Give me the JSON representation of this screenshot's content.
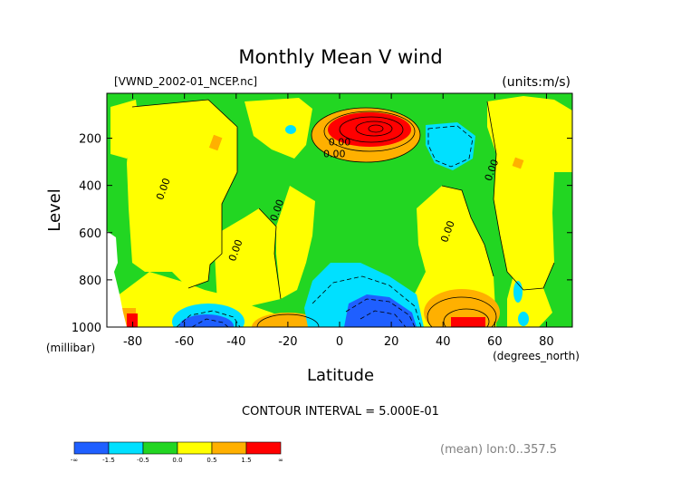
{
  "chart_data": {
    "type": "heatmap",
    "title": "Monthly Mean V wind",
    "file_label": "[VWND_2002-01_NCEP.nc]",
    "units_label": "(units:m/s)",
    "xlabel": "Latitude",
    "x_units": "(degrees_north)",
    "ylabel": "Level",
    "y_units": "(millibar)",
    "xlim": [
      -90,
      90
    ],
    "ylim": [
      1000,
      10
    ],
    "x_ticks": [
      -80,
      -60,
      -40,
      -20,
      0,
      20,
      40,
      60,
      80
    ],
    "y_ticks": [
      200,
      400,
      600,
      800,
      1000
    ],
    "contour_interval_text": "CONTOUR INTERVAL = 5.000E-01",
    "mean_text": "(mean) lon:0..357.5",
    "contour_labels": [
      {
        "text": "0.00",
        "lat": 0,
        "level": 230
      },
      {
        "text": "0.00",
        "lat": -2,
        "level": 280
      },
      {
        "text": "0.00",
        "lat": -67,
        "level": 420
      },
      {
        "text": "0.00",
        "lat": -23,
        "level": 510
      },
      {
        "text": "0.00",
        "lat": -39,
        "level": 680
      },
      {
        "text": "0.00",
        "lat": 43,
        "level": 600
      },
      {
        "text": "0.00",
        "lat": 60,
        "level": 340
      }
    ],
    "colorbar": {
      "bins": [
        {
          "color": "#1f5fff"
        },
        {
          "color": "#00e0ff"
        },
        {
          "color": "#22d622"
        },
        {
          "color": "#ffff00"
        },
        {
          "color": "#ffb000"
        },
        {
          "color": "#ff0000"
        }
      ],
      "labels": [
        "-∞",
        "-1.5",
        "-0.5",
        "0.0",
        "0.5",
        "1.5",
        "∞"
      ]
    },
    "regions": [
      {
        "name": "positive-upper-jet-core",
        "color": "#ff0000",
        "lat": 12,
        "level": 155,
        "rlat": 10,
        "rlev": 35
      },
      {
        "name": "positive-upper-jet-mid",
        "color": "#ffb000",
        "lat": 12,
        "level": 160,
        "rlat": 15,
        "rlev": 55
      },
      {
        "name": "negative-upper-tropics",
        "color": "#00e0ff",
        "lat": 38,
        "level": 185,
        "rlat": 8,
        "rlev": 45
      },
      {
        "name": "negative-surface-core",
        "color": "#1f5fff",
        "lat": 10,
        "level": 920,
        "rlat": 10,
        "rlev": 70
      },
      {
        "name": "negative-surface-south",
        "color": "#1f5fff",
        "lat": -53,
        "level": 970,
        "rlat": 9,
        "rlev": 30
      },
      {
        "name": "positive-surface-north-core",
        "color": "#ff0000",
        "lat": 50,
        "level": 975,
        "rlat": 6,
        "rlev": 15
      },
      {
        "name": "positive-surface-south-edge",
        "color": "#ff0000",
        "lat": -84,
        "level": 975,
        "rlat": 3,
        "rlev": 20
      }
    ]
  }
}
